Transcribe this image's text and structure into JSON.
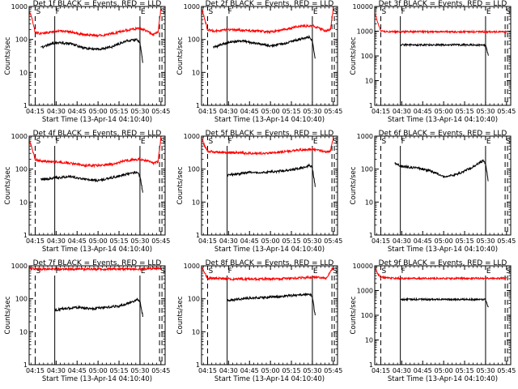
{
  "figure": {
    "ylabel": "Counts/sec",
    "xlabel": "Start Time (13-Apr-14 04:10:40)",
    "x_ticks": [
      "04:15",
      "04:30",
      "04:45",
      "05:00",
      "05:15",
      "05:30",
      "05:45"
    ],
    "y_ticks": [
      "1",
      "10",
      "100",
      "1000"
    ],
    "y_ticks_alt": [
      "1",
      "10",
      "100",
      "1000",
      "10000"
    ],
    "colors": {
      "events": "#000000",
      "lld": "#ff0000",
      "background": "#ffffff"
    }
  },
  "chart_data": [
    {
      "type": "line",
      "title": "Det 1f BLACK = Events, RED = LLD",
      "xlabel": "Start Time (13-Apr-14 04:10:40)",
      "ylabel": "Counts/sec",
      "y_scale": "log",
      "ylim": [
        1,
        1000
      ],
      "x_range": [
        "04:10:40",
        "05:48:00"
      ],
      "markers": [
        {
          "time": "04:15",
          "label": "S",
          "style": "dashed"
        },
        {
          "time": "04:29",
          "label": "F",
          "style": "solid"
        },
        {
          "time": "05:30",
          "label": "E",
          "style": "solid"
        },
        {
          "time": "05:44",
          "label": "S",
          "style": "dashed"
        }
      ],
      "series": [
        {
          "name": "LLD",
          "color": "#ff0000",
          "x": [
            "04:11",
            "04:13",
            "04:15",
            "04:20",
            "04:30",
            "04:40",
            "04:50",
            "05:00",
            "05:10",
            "05:20",
            "05:30",
            "05:35",
            "05:40",
            "05:43",
            "05:45"
          ],
          "y": [
            700,
            400,
            160,
            150,
            180,
            170,
            140,
            130,
            150,
            190,
            220,
            180,
            140,
            170,
            900
          ]
        },
        {
          "name": "Events",
          "color": "#000000",
          "x": [
            "04:19",
            "04:21",
            "04:25",
            "04:30",
            "04:40",
            "04:50",
            "05:00",
            "05:10",
            "05:20",
            "05:28",
            "05:30",
            "05:32"
          ],
          "y": [
            60,
            60,
            70,
            80,
            75,
            55,
            50,
            60,
            90,
            100,
            80,
            20
          ]
        }
      ]
    },
    {
      "type": "line",
      "title": "Det 2f BLACK = Events, RED = LLD",
      "xlabel": "Start Time (13-Apr-14 04:10:40)",
      "ylabel": "Counts/sec",
      "y_scale": "log",
      "ylim": [
        1,
        1000
      ],
      "x_range": [
        "04:10:40",
        "05:48:00"
      ],
      "markers": [
        {
          "time": "04:15",
          "label": "S",
          "style": "dashed"
        },
        {
          "time": "04:29",
          "label": "F",
          "style": "solid"
        },
        {
          "time": "05:30",
          "label": "E",
          "style": "solid"
        },
        {
          "time": "05:44",
          "label": "S",
          "style": "dashed"
        }
      ],
      "series": [
        {
          "name": "LLD",
          "color": "#ff0000",
          "x": [
            "04:11",
            "04:13",
            "04:15",
            "04:20",
            "04:30",
            "04:40",
            "04:50",
            "05:00",
            "05:10",
            "05:20",
            "05:30",
            "05:35",
            "05:40",
            "05:43",
            "05:45"
          ],
          "y": [
            800,
            400,
            200,
            180,
            200,
            190,
            180,
            170,
            200,
            250,
            260,
            220,
            180,
            200,
            900
          ]
        },
        {
          "name": "Events",
          "color": "#000000",
          "x": [
            "04:19",
            "04:21",
            "04:25",
            "04:30",
            "04:40",
            "04:50",
            "05:00",
            "05:10",
            "05:20",
            "05:28",
            "05:30",
            "05:32"
          ],
          "y": [
            60,
            60,
            70,
            80,
            90,
            75,
            65,
            75,
            100,
            120,
            90,
            25
          ]
        }
      ]
    },
    {
      "type": "line",
      "title": "Det 3f BLACK = Events, RED = LLD",
      "xlabel": "Start Time (13-Apr-14 04:10:40)",
      "ylabel": "Counts/sec",
      "y_scale": "log",
      "ylim": [
        1,
        10000
      ],
      "x_range": [
        "04:10:40",
        "05:48:00"
      ],
      "markers": [
        {
          "time": "04:15",
          "label": "S",
          "style": "dashed"
        },
        {
          "time": "04:29",
          "label": "F",
          "style": "solid"
        },
        {
          "time": "05:30",
          "label": "E",
          "style": "solid"
        },
        {
          "time": "05:44",
          "label": "S",
          "style": "dashed"
        }
      ],
      "series": [
        {
          "name": "LLD",
          "color": "#ff0000",
          "x": [
            "04:11",
            "04:13",
            "04:15",
            "04:20",
            "04:30",
            "05:00",
            "05:30",
            "05:45"
          ],
          "y": [
            5000,
            2000,
            1000,
            950,
            950,
            950,
            950,
            950
          ]
        },
        {
          "name": "Events",
          "color": "#000000",
          "x": [
            "04:29",
            "04:40",
            "05:00",
            "05:20",
            "05:30",
            "05:32"
          ],
          "y": [
            280,
            280,
            280,
            280,
            270,
            100
          ]
        }
      ]
    },
    {
      "type": "line",
      "title": "Det 4f BLACK = Events, RED = LLD",
      "xlabel": "Start Time (13-Apr-14 04:10:40)",
      "ylabel": "Counts/sec",
      "y_scale": "log",
      "ylim": [
        1,
        1000
      ],
      "x_range": [
        "04:10:40",
        "05:48:00"
      ],
      "markers": [
        {
          "time": "04:15",
          "label": "S",
          "style": "dashed"
        },
        {
          "time": "04:29",
          "label": "F",
          "style": "solid"
        },
        {
          "time": "05:30",
          "label": "E",
          "style": "solid"
        },
        {
          "time": "05:44",
          "label": "S",
          "style": "dashed"
        }
      ],
      "series": [
        {
          "name": "LLD",
          "color": "#ff0000",
          "x": [
            "04:11",
            "04:13",
            "04:15",
            "04:20",
            "04:30",
            "04:40",
            "04:50",
            "05:00",
            "05:10",
            "05:20",
            "05:30",
            "05:35",
            "05:40",
            "05:43",
            "05:45"
          ],
          "y": [
            700,
            400,
            200,
            170,
            170,
            150,
            130,
            130,
            140,
            180,
            200,
            180,
            150,
            170,
            900
          ]
        },
        {
          "name": "Events",
          "color": "#000000",
          "x": [
            "04:19",
            "04:25",
            "04:30",
            "04:40",
            "04:50",
            "05:00",
            "05:10",
            "05:20",
            "05:28",
            "05:30",
            "05:32"
          ],
          "y": [
            50,
            50,
            55,
            60,
            50,
            45,
            55,
            70,
            80,
            60,
            20
          ]
        }
      ]
    },
    {
      "type": "line",
      "title": "Det 5f BLACK = Events, RED = LLD",
      "xlabel": "Start Time (13-Apr-14 04:10:40)",
      "ylabel": "Counts/sec",
      "y_scale": "log",
      "ylim": [
        1,
        1000
      ],
      "x_range": [
        "04:10:40",
        "05:48:00"
      ],
      "markers": [
        {
          "time": "04:15",
          "label": "S",
          "style": "dashed"
        },
        {
          "time": "04:29",
          "label": "F",
          "style": "solid"
        },
        {
          "time": "05:30",
          "label": "E",
          "style": "solid"
        },
        {
          "time": "05:44",
          "label": "S",
          "style": "dashed"
        }
      ],
      "series": [
        {
          "name": "LLD",
          "color": "#ff0000",
          "x": [
            "04:11",
            "04:13",
            "04:15",
            "04:20",
            "04:30",
            "04:40",
            "04:50",
            "05:00",
            "05:10",
            "05:20",
            "05:30",
            "05:35",
            "05:40",
            "05:43",
            "05:45"
          ],
          "y": [
            800,
            500,
            350,
            330,
            320,
            310,
            300,
            310,
            340,
            380,
            400,
            370,
            320,
            360,
            900
          ]
        },
        {
          "name": "Events",
          "color": "#000000",
          "x": [
            "04:29",
            "04:35",
            "04:45",
            "04:55",
            "05:05",
            "05:15",
            "05:25",
            "05:28",
            "05:30",
            "05:32"
          ],
          "y": [
            65,
            70,
            80,
            80,
            85,
            95,
            115,
            130,
            110,
            30
          ]
        }
      ]
    },
    {
      "type": "line",
      "title": "Det 6f BLACK = Events, RED = LLD",
      "xlabel": "Start Time (13-Apr-14 04:10:40)",
      "ylabel": "Counts/sec",
      "y_scale": "log",
      "ylim": [
        1,
        1000
      ],
      "x_range": [
        "04:10:40",
        "05:48:00"
      ],
      "markers": [
        {
          "time": "04:15",
          "label": "S",
          "style": "dashed"
        },
        {
          "time": "04:29",
          "label": "F",
          "style": "solid"
        },
        {
          "time": "05:30",
          "label": "E",
          "style": "solid"
        },
        {
          "time": "05:44",
          "label": "S",
          "style": "dashed"
        }
      ],
      "series": [
        {
          "name": "Events",
          "color": "#000000",
          "x": [
            "04:25",
            "04:30",
            "04:40",
            "04:50",
            "05:00",
            "05:10",
            "05:20",
            "05:28",
            "05:30",
            "05:32"
          ],
          "y": [
            150,
            120,
            110,
            90,
            60,
            70,
            110,
            180,
            150,
            40
          ]
        }
      ]
    },
    {
      "type": "line",
      "title": "Det 7f BLACK = Events, RED = LLD",
      "xlabel": "Start Time (13-Apr-14 04:10:40)",
      "ylabel": "Counts/sec",
      "y_scale": "log",
      "ylim": [
        1,
        1000
      ],
      "x_range": [
        "04:10:40",
        "05:48:00"
      ],
      "markers": [
        {
          "time": "04:15",
          "label": "S",
          "style": "dashed"
        },
        {
          "time": "04:29",
          "label": "F",
          "style": "solid"
        },
        {
          "time": "05:30",
          "label": "E",
          "style": "solid"
        },
        {
          "time": "05:44",
          "label": "S",
          "style": "dashed"
        }
      ],
      "series": [
        {
          "name": "LLD",
          "color": "#ff0000",
          "x": [
            "04:11",
            "04:15",
            "04:30",
            "04:45",
            "05:00",
            "05:15",
            "05:30",
            "05:45"
          ],
          "y": [
            850,
            800,
            800,
            800,
            800,
            800,
            800,
            850
          ]
        },
        {
          "name": "Events",
          "color": "#000000",
          "x": [
            "04:29",
            "04:35",
            "04:45",
            "04:55",
            "05:05",
            "05:15",
            "05:25",
            "05:28",
            "05:30",
            "05:32"
          ],
          "y": [
            45,
            50,
            55,
            50,
            55,
            60,
            80,
            95,
            85,
            30
          ]
        }
      ]
    },
    {
      "type": "line",
      "title": "Det 8f BLACK = Events, RED = LLD",
      "xlabel": "Start Time (13-Apr-14 04:10:40)",
      "ylabel": "Counts/sec",
      "y_scale": "log",
      "ylim": [
        1,
        1000
      ],
      "x_range": [
        "04:10:40",
        "05:48:00"
      ],
      "markers": [
        {
          "time": "04:15",
          "label": "S",
          "style": "dashed"
        },
        {
          "time": "04:29",
          "label": "F",
          "style": "solid"
        },
        {
          "time": "05:30",
          "label": "E",
          "style": "solid"
        },
        {
          "time": "05:44",
          "label": "S",
          "style": "dashed"
        }
      ],
      "series": [
        {
          "name": "LLD",
          "color": "#ff0000",
          "x": [
            "04:11",
            "04:13",
            "04:15",
            "04:20",
            "04:30",
            "04:45",
            "05:00",
            "05:15",
            "05:30",
            "05:40",
            "05:45"
          ],
          "y": [
            900,
            600,
            420,
            420,
            400,
            400,
            400,
            420,
            450,
            420,
            900
          ]
        },
        {
          "name": "Events",
          "color": "#000000",
          "x": [
            "04:29",
            "04:35",
            "04:45",
            "04:55",
            "05:05",
            "05:15",
            "05:25",
            "05:28",
            "05:30",
            "05:32"
          ],
          "y": [
            90,
            95,
            105,
            110,
            115,
            125,
            135,
            140,
            120,
            30
          ]
        }
      ]
    },
    {
      "type": "line",
      "title": "Det 9f BLACK = Events, RED = LLD",
      "xlabel": "Start Time (13-Apr-14 04:10:40)",
      "ylabel": "Counts/sec",
      "y_scale": "log",
      "ylim": [
        1,
        10000
      ],
      "x_range": [
        "04:10:40",
        "05:48:00"
      ],
      "markers": [
        {
          "time": "04:15",
          "label": "S",
          "style": "dashed"
        },
        {
          "time": "04:29",
          "label": "F",
          "style": "solid"
        },
        {
          "time": "05:30",
          "label": "E",
          "style": "solid"
        },
        {
          "time": "05:44",
          "label": "S",
          "style": "dashed"
        }
      ],
      "series": [
        {
          "name": "LLD",
          "color": "#ff0000",
          "x": [
            "04:11",
            "04:13",
            "04:15",
            "04:20",
            "04:30",
            "05:00",
            "05:30",
            "05:45"
          ],
          "y": [
            8000,
            4500,
            3500,
            3200,
            3100,
            3100,
            3100,
            3200
          ]
        },
        {
          "name": "Events",
          "color": "#000000",
          "x": [
            "04:29",
            "04:40",
            "05:00",
            "05:20",
            "05:30",
            "05:32"
          ],
          "y": [
            440,
            440,
            440,
            440,
            430,
            200
          ]
        }
      ]
    }
  ]
}
